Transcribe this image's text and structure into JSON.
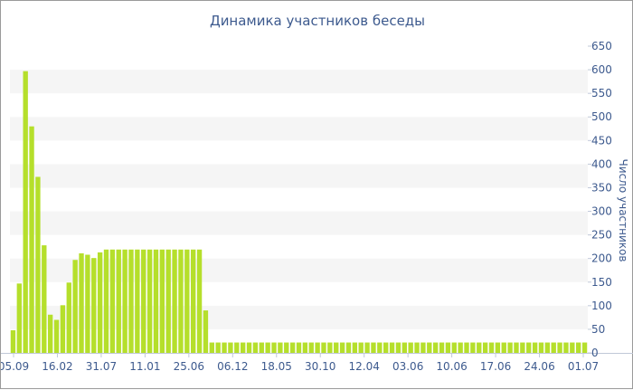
{
  "chart_data": {
    "type": "bar",
    "title": "Динамика участников беседы",
    "xlabel": "",
    "ylabel": "Число участников",
    "ylim": [
      0,
      650
    ],
    "y_ticks": [
      0,
      50,
      100,
      150,
      200,
      250,
      300,
      350,
      400,
      450,
      500,
      550,
      600,
      650
    ],
    "y_axis_position": "right",
    "x_tick_labels": [
      "05.09",
      "16.02",
      "31.07",
      "11.01",
      "25.06",
      "06.12",
      "18.05",
      "30.10",
      "12.04",
      "03.06",
      "10.06",
      "17.06",
      "24.06",
      "01.07"
    ],
    "grid": "alternating-bands",
    "bar_color": "#b5df2b",
    "band_color": "#f5f5f5",
    "text_color": "#3d5a8e",
    "series": [
      {
        "values": [
          48,
          147,
          597,
          480,
          373,
          228,
          81,
          70,
          101,
          149,
          197,
          211,
          208,
          201,
          213,
          219,
          219,
          219,
          219,
          219,
          219,
          219,
          219,
          219,
          219,
          219,
          219,
          219,
          219,
          219,
          219,
          90,
          22,
          22,
          22,
          22,
          22,
          22,
          22,
          22,
          22,
          22,
          22,
          22,
          22,
          22,
          22,
          22,
          22,
          22,
          22,
          22,
          22,
          22,
          22,
          22,
          22,
          22,
          22,
          22,
          22,
          22,
          22,
          22,
          22,
          22,
          22,
          22,
          22,
          22,
          22,
          22,
          22,
          22,
          22,
          22,
          22,
          22,
          22,
          22,
          22,
          22,
          22,
          22,
          22,
          22,
          22,
          22,
          22,
          22,
          22,
          22,
          22
        ]
      }
    ]
  }
}
